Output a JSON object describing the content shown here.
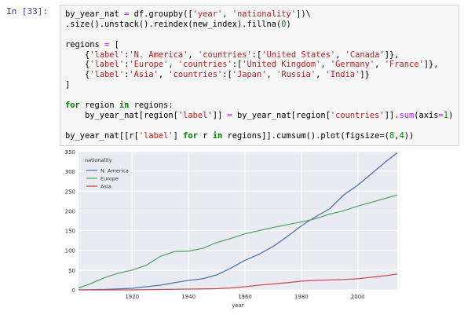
{
  "prompt": "In [33]:",
  "code_lines": [
    "by_year_nat = df.groupby(['year', 'nationality'])\\",
    ".size().unstack().reindex(new_index).fillna(0)",
    "",
    "regions = [",
    "    {'label':'N. America', 'countries':['United States', 'Canada']},",
    "    {'label':'Europe', 'countries':['United Kingdom', 'Germany', 'France']},",
    "    {'label':'Asia', 'countries':['Japan', 'Russia', 'India']}",
    "]",
    "",
    "for region in regions:",
    "    by_year_nat[region['label']] = by_year_nat[region['countries']].sum(axis=1)",
    "",
    "by_year_nat[[r['label'] for r in regions]].cumsum().plot(figsize=(8,4))"
  ],
  "colors": {
    "prompt": "#303F9F",
    "n_america": "#4C72B0",
    "europe": "#55A868",
    "asia": "#C44E52",
    "plot_bg": "#EAEAF2"
  },
  "chart_data": {
    "type": "line",
    "xlabel": "year",
    "ylabel": "",
    "xlim": [
      1901,
      2014
    ],
    "ylim": [
      0,
      350
    ],
    "xticks": [
      1920,
      1940,
      1960,
      1980,
      2000
    ],
    "yticks": [
      0,
      50,
      100,
      150,
      200,
      250,
      300,
      350
    ],
    "legend_title": "nationality",
    "legend_position": "top-left",
    "series": [
      {
        "name": "N. America",
        "x": [
          1901,
          1910,
          1920,
          1930,
          1935,
          1940,
          1945,
          1950,
          1955,
          1960,
          1965,
          1970,
          1975,
          1980,
          1985,
          1990,
          1995,
          2000,
          2005,
          2010,
          2014
        ],
        "y": [
          0,
          1,
          4,
          12,
          18,
          24,
          28,
          38,
          55,
          75,
          90,
          110,
          135,
          162,
          185,
          205,
          240,
          265,
          295,
          325,
          347
        ]
      },
      {
        "name": "Europe",
        "x": [
          1901,
          1905,
          1910,
          1915,
          1920,
          1925,
          1930,
          1935,
          1940,
          1945,
          1950,
          1955,
          1960,
          1965,
          1970,
          1975,
          1980,
          1985,
          1990,
          1995,
          2000,
          2005,
          2010,
          2014
        ],
        "y": [
          5,
          15,
          30,
          42,
          50,
          62,
          85,
          97,
          98,
          105,
          120,
          130,
          142,
          150,
          158,
          165,
          172,
          180,
          192,
          200,
          212,
          222,
          232,
          240
        ]
      },
      {
        "name": "Asia",
        "x": [
          1901,
          1920,
          1930,
          1940,
          1950,
          1955,
          1960,
          1965,
          1970,
          1975,
          1980,
          1985,
          1990,
          1995,
          2000,
          2005,
          2010,
          2014
        ],
        "y": [
          0,
          0,
          1,
          2,
          3,
          5,
          8,
          12,
          15,
          18,
          22,
          24,
          25,
          26,
          28,
          32,
          36,
          40
        ]
      }
    ]
  }
}
